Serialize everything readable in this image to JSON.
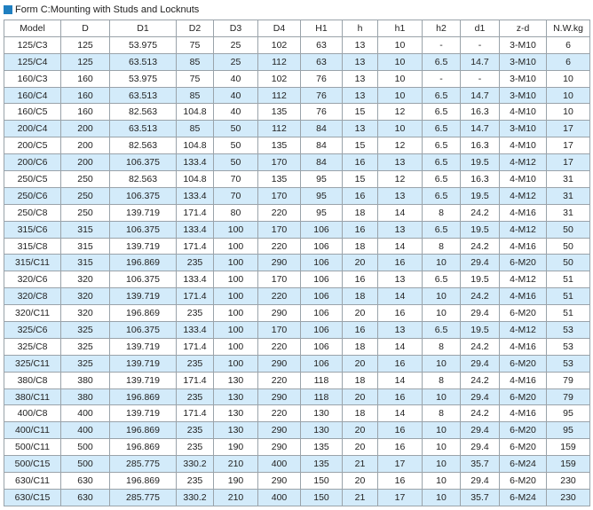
{
  "title": "Form C:Mounting with Studs and Locknuts",
  "table": {
    "header": [
      "Model",
      "D",
      "D1",
      "D2",
      "D3",
      "D4",
      "H1",
      "h",
      "h1",
      "h2",
      "d1",
      "z-d",
      "N.W.kg"
    ],
    "rows": [
      [
        "125/C3",
        "125",
        "53.975",
        "75",
        "25",
        "102",
        "63",
        "13",
        "10",
        "-",
        "-",
        "3-M10",
        "6"
      ],
      [
        "125/C4",
        "125",
        "63.513",
        "85",
        "25",
        "112",
        "63",
        "13",
        "10",
        "6.5",
        "14.7",
        "3-M10",
        "6"
      ],
      [
        "160/C3",
        "160",
        "53.975",
        "75",
        "40",
        "102",
        "76",
        "13",
        "10",
        "-",
        "-",
        "3-M10",
        "10"
      ],
      [
        "160/C4",
        "160",
        "63.513",
        "85",
        "40",
        "112",
        "76",
        "13",
        "10",
        "6.5",
        "14.7",
        "3-M10",
        "10"
      ],
      [
        "160/C5",
        "160",
        "82.563",
        "104.8",
        "40",
        "135",
        "76",
        "15",
        "12",
        "6.5",
        "16.3",
        "4-M10",
        "10"
      ],
      [
        "200/C4",
        "200",
        "63.513",
        "85",
        "50",
        "112",
        "84",
        "13",
        "10",
        "6.5",
        "14.7",
        "3-M10",
        "17"
      ],
      [
        "200/C5",
        "200",
        "82.563",
        "104.8",
        "50",
        "135",
        "84",
        "15",
        "12",
        "6.5",
        "16.3",
        "4-M10",
        "17"
      ],
      [
        "200/C6",
        "200",
        "106.375",
        "133.4",
        "50",
        "170",
        "84",
        "16",
        "13",
        "6.5",
        "19.5",
        "4-M12",
        "17"
      ],
      [
        "250/C5",
        "250",
        "82.563",
        "104.8",
        "70",
        "135",
        "95",
        "15",
        "12",
        "6.5",
        "16.3",
        "4-M10",
        "31"
      ],
      [
        "250/C6",
        "250",
        "106.375",
        "133.4",
        "70",
        "170",
        "95",
        "16",
        "13",
        "6.5",
        "19.5",
        "4-M12",
        "31"
      ],
      [
        "250/C8",
        "250",
        "139.719",
        "171.4",
        "80",
        "220",
        "95",
        "18",
        "14",
        "8",
        "24.2",
        "4-M16",
        "31"
      ],
      [
        "315/C6",
        "315",
        "106.375",
        "133.4",
        "100",
        "170",
        "106",
        "16",
        "13",
        "6.5",
        "19.5",
        "4-M12",
        "50"
      ],
      [
        "315/C8",
        "315",
        "139.719",
        "171.4",
        "100",
        "220",
        "106",
        "18",
        "14",
        "8",
        "24.2",
        "4-M16",
        "50"
      ],
      [
        "315/C11",
        "315",
        "196.869",
        "235",
        "100",
        "290",
        "106",
        "20",
        "16",
        "10",
        "29.4",
        "6-M20",
        "50"
      ],
      [
        "320/C6",
        "320",
        "106.375",
        "133.4",
        "100",
        "170",
        "106",
        "16",
        "13",
        "6.5",
        "19.5",
        "4-M12",
        "51"
      ],
      [
        "320/C8",
        "320",
        "139.719",
        "171.4",
        "100",
        "220",
        "106",
        "18",
        "14",
        "10",
        "24.2",
        "4-M16",
        "51"
      ],
      [
        "320/C11",
        "320",
        "196.869",
        "235",
        "100",
        "290",
        "106",
        "20",
        "16",
        "10",
        "29.4",
        "6-M20",
        "51"
      ],
      [
        "325/C6",
        "325",
        "106.375",
        "133.4",
        "100",
        "170",
        "106",
        "16",
        "13",
        "6.5",
        "19.5",
        "4-M12",
        "53"
      ],
      [
        "325/C8",
        "325",
        "139.719",
        "171.4",
        "100",
        "220",
        "106",
        "18",
        "14",
        "8",
        "24.2",
        "4-M16",
        "53"
      ],
      [
        "325/C11",
        "325",
        "139.719",
        "235",
        "100",
        "290",
        "106",
        "20",
        "16",
        "10",
        "29.4",
        "6-M20",
        "53"
      ],
      [
        "380/C8",
        "380",
        "139.719",
        "171.4",
        "130",
        "220",
        "118",
        "18",
        "14",
        "8",
        "24.2",
        "4-M16",
        "79"
      ],
      [
        "380/C11",
        "380",
        "196.869",
        "235",
        "130",
        "290",
        "118",
        "20",
        "16",
        "10",
        "29.4",
        "6-M20",
        "79"
      ],
      [
        "400/C8",
        "400",
        "139.719",
        "171.4",
        "130",
        "220",
        "130",
        "18",
        "14",
        "8",
        "24.2",
        "4-M16",
        "95"
      ],
      [
        "400/C11",
        "400",
        "196.869",
        "235",
        "130",
        "290",
        "130",
        "20",
        "16",
        "10",
        "29.4",
        "6-M20",
        "95"
      ],
      [
        "500/C11",
        "500",
        "196.869",
        "235",
        "190",
        "290",
        "135",
        "20",
        "16",
        "10",
        "29.4",
        "6-M20",
        "159"
      ],
      [
        "500/C15",
        "500",
        "285.775",
        "330.2",
        "210",
        "400",
        "135",
        "21",
        "17",
        "10",
        "35.7",
        "6-M24",
        "159"
      ],
      [
        "630/C11",
        "630",
        "196.869",
        "235",
        "190",
        "290",
        "150",
        "20",
        "16",
        "10",
        "29.4",
        "6-M20",
        "230"
      ],
      [
        "630/C15",
        "630",
        "285.775",
        "330.2",
        "210",
        "400",
        "150",
        "21",
        "17",
        "10",
        "35.7",
        "6-M24",
        "230"
      ]
    ]
  }
}
